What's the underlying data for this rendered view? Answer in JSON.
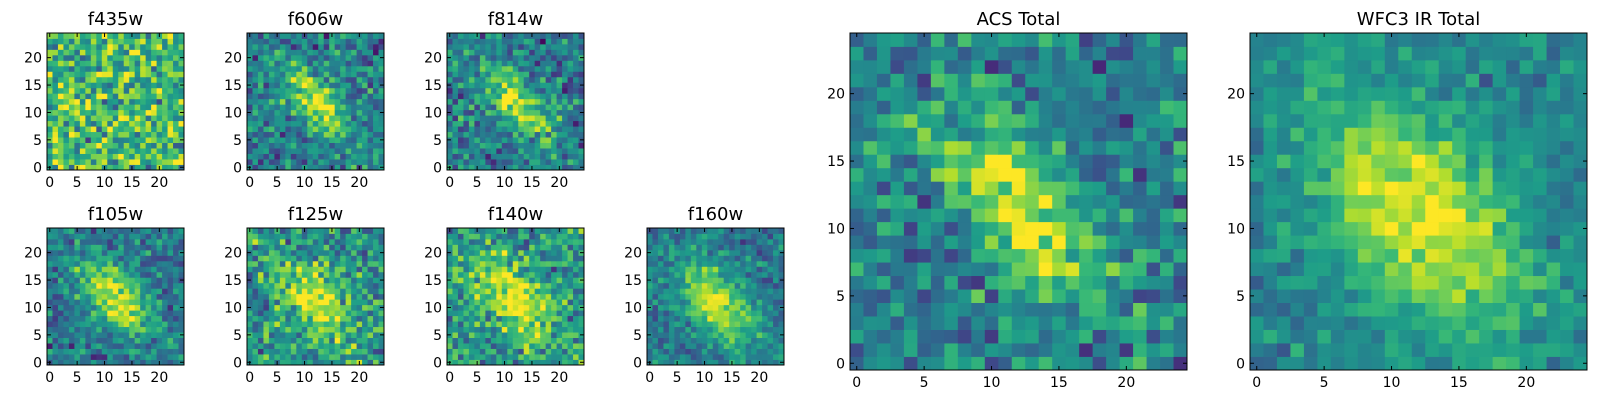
{
  "chart_data": [
    {
      "type": "heatmap",
      "title": "f435w",
      "xticks": [
        "0",
        "5",
        "10",
        "15",
        "20"
      ],
      "yticks": [
        "0",
        "5",
        "10",
        "15",
        "20"
      ],
      "xlim": [
        0,
        25
      ],
      "ylim": [
        0,
        25
      ],
      "grid": false,
      "values": {
        "size": 25,
        "center": [
          12,
          12
        ],
        "peak": 0.68,
        "sigma_major": 6,
        "sigma_minor": 6,
        "angle_deg": -50,
        "background": 0.68,
        "noise": 0.18,
        "colormap": "viridis"
      }
    },
    {
      "type": "heatmap",
      "title": "f606w",
      "xticks": [
        "0",
        "5",
        "10",
        "15",
        "20"
      ],
      "yticks": [
        "0",
        "5",
        "10",
        "15",
        "20"
      ],
      "xlim": [
        0,
        25
      ],
      "ylim": [
        0,
        25
      ],
      "grid": false,
      "values": {
        "size": 25,
        "center": [
          12,
          12
        ],
        "peak": 0.95,
        "sigma_major": 5.5,
        "sigma_minor": 2.2,
        "angle_deg": -50,
        "background": 0.42,
        "noise": 0.14,
        "colormap": "viridis"
      }
    },
    {
      "type": "heatmap",
      "title": "f814w",
      "xticks": [
        "0",
        "5",
        "10",
        "15",
        "20"
      ],
      "yticks": [
        "0",
        "5",
        "10",
        "15",
        "20"
      ],
      "xlim": [
        0,
        25
      ],
      "ylim": [
        0,
        25
      ],
      "grid": false,
      "values": {
        "size": 25,
        "center": [
          12,
          12
        ],
        "peak": 0.97,
        "sigma_major": 5.5,
        "sigma_minor": 2.2,
        "angle_deg": -50,
        "background": 0.42,
        "noise": 0.14,
        "colormap": "viridis"
      }
    },
    {
      "type": "heatmap",
      "title": "f105w",
      "xticks": [
        "0",
        "5",
        "10",
        "15",
        "20"
      ],
      "yticks": [
        "0",
        "5",
        "10",
        "15",
        "20"
      ],
      "xlim": [
        0,
        25
      ],
      "ylim": [
        0,
        25
      ],
      "grid": false,
      "values": {
        "size": 25,
        "center": [
          12,
          12
        ],
        "peak": 0.95,
        "sigma_major": 6,
        "sigma_minor": 3,
        "angle_deg": -50,
        "background": 0.4,
        "noise": 0.12,
        "colormap": "viridis"
      }
    },
    {
      "type": "heatmap",
      "title": "f125w",
      "xticks": [
        "0",
        "5",
        "10",
        "15",
        "20"
      ],
      "yticks": [
        "0",
        "5",
        "10",
        "15",
        "20"
      ],
      "xlim": [
        0,
        25
      ],
      "ylim": [
        0,
        25
      ],
      "grid": false,
      "values": {
        "size": 25,
        "center": [
          12,
          11
        ],
        "peak": 0.95,
        "sigma_major": 6.5,
        "sigma_minor": 3.5,
        "angle_deg": -50,
        "background": 0.5,
        "noise": 0.15,
        "colormap": "viridis"
      }
    },
    {
      "type": "heatmap",
      "title": "f140w",
      "xticks": [
        "0",
        "5",
        "10",
        "15",
        "20"
      ],
      "yticks": [
        "0",
        "5",
        "10",
        "15",
        "20"
      ],
      "xlim": [
        0,
        25
      ],
      "ylim": [
        0,
        25
      ],
      "grid": false,
      "values": {
        "size": 25,
        "center": [
          12,
          11
        ],
        "peak": 0.95,
        "sigma_major": 6.5,
        "sigma_minor": 3.5,
        "angle_deg": -50,
        "background": 0.52,
        "noise": 0.15,
        "colormap": "viridis"
      }
    },
    {
      "type": "heatmap",
      "title": "f160w",
      "xticks": [
        "0",
        "5",
        "10",
        "15",
        "20"
      ],
      "yticks": [
        "0",
        "5",
        "10",
        "15",
        "20"
      ],
      "xlim": [
        0,
        25
      ],
      "ylim": [
        0,
        25
      ],
      "grid": false,
      "values": {
        "size": 25,
        "center": [
          12,
          11
        ],
        "peak": 0.95,
        "sigma_major": 6,
        "sigma_minor": 3.5,
        "angle_deg": -50,
        "background": 0.4,
        "noise": 0.1,
        "colormap": "viridis"
      }
    },
    {
      "type": "heatmap",
      "title": "ACS Total",
      "xticks": [
        "0",
        "5",
        "10",
        "15",
        "20"
      ],
      "yticks": [
        "0",
        "5",
        "10",
        "15",
        "20"
      ],
      "xlim": [
        0,
        25
      ],
      "ylim": [
        0,
        25
      ],
      "grid": false,
      "values": {
        "size": 25,
        "center": [
          12,
          12
        ],
        "peak": 0.97,
        "sigma_major": 6,
        "sigma_minor": 2.5,
        "angle_deg": -50,
        "background": 0.42,
        "noise": 0.14,
        "colormap": "viridis"
      }
    },
    {
      "type": "heatmap",
      "title": "WFC3 IR Total",
      "xticks": [
        "0",
        "5",
        "10",
        "15",
        "20"
      ],
      "yticks": [
        "0",
        "5",
        "10",
        "15",
        "20"
      ],
      "xlim": [
        0,
        25
      ],
      "ylim": [
        0,
        25
      ],
      "grid": false,
      "values": {
        "size": 25,
        "center": [
          12,
          11
        ],
        "peak": 0.97,
        "sigma_major": 7,
        "sigma_minor": 4,
        "angle_deg": -50,
        "background": 0.45,
        "noise": 0.08,
        "colormap": "viridis"
      }
    }
  ]
}
